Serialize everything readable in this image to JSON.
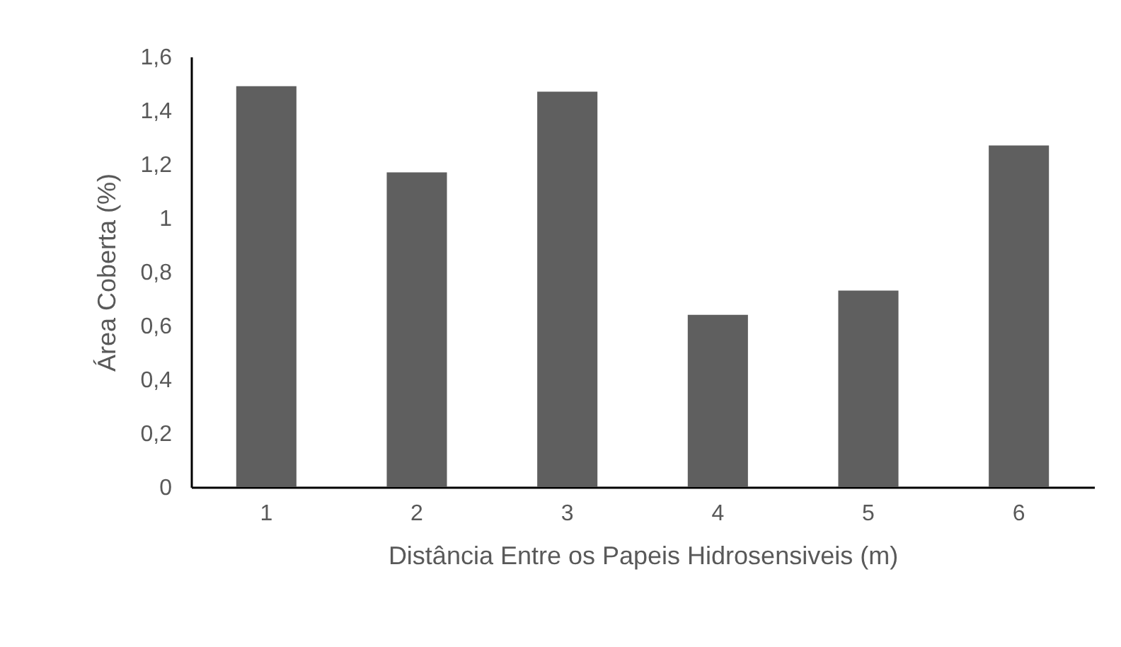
{
  "chart_data": {
    "type": "bar",
    "xlabel": "Distância Entre os Papeis Hidrosensiveis (m)",
    "ylabel": "Área Coberta (%)",
    "categories": [
      "1",
      "2",
      "3",
      "4",
      "5",
      "6"
    ],
    "values": [
      1.49,
      1.17,
      1.47,
      0.64,
      0.73,
      1.27
    ],
    "color": "#5f5f5f",
    "ylim": [
      0,
      1.6
    ],
    "yticks": [
      0,
      {
        "value": 0.2,
        "label": "0,2"
      },
      {
        "value": 0.4,
        "label": "0,4"
      },
      {
        "value": 0.6,
        "label": "0,6"
      },
      {
        "value": 0.8,
        "label": "0,8"
      },
      1,
      {
        "value": 1.2,
        "label": "1,2"
      },
      {
        "value": 1.4,
        "label": "1,4"
      },
      {
        "value": 1.6,
        "label": "1,6"
      }
    ],
    "grid": false,
    "legend": false
  }
}
